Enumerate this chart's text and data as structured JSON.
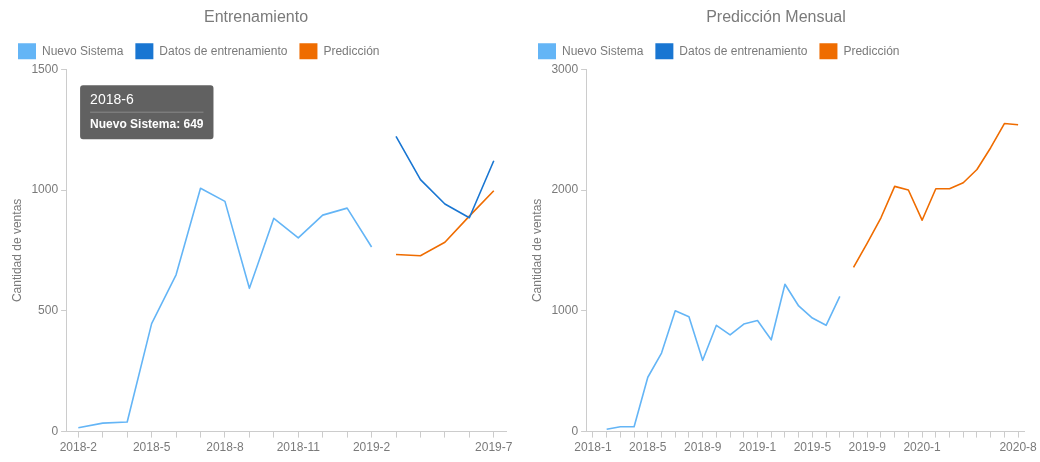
{
  "chart_data": [
    {
      "type": "line",
      "title": "Entrenamiento",
      "ylabel": "Cantidad de ventas",
      "categories": [
        "2018-2",
        null,
        null,
        "2018-5",
        null,
        null,
        "2018-8",
        null,
        null,
        "2018-11",
        null,
        null,
        "2019-2",
        null,
        null,
        null,
        null,
        "2019-7"
      ],
      "series": [
        {
          "name": "Nuevo Sistema",
          "color": "#64b5f6",
          "values": [
            16,
            35,
            40,
            447,
            649,
            1007,
            953,
            593,
            883,
            802,
            896,
            925,
            764,
            null,
            null,
            null,
            null,
            null
          ]
        },
        {
          "name": "Datos de entrenamiento",
          "color": "#1976d2",
          "values": [
            null,
            null,
            null,
            null,
            null,
            null,
            null,
            null,
            null,
            null,
            null,
            null,
            null,
            1222,
            1043,
            942,
            885,
            1121
          ]
        },
        {
          "name": "Predicción",
          "color": "#ef6c00",
          "values": [
            null,
            null,
            null,
            null,
            null,
            null,
            null,
            null,
            null,
            null,
            null,
            null,
            null,
            733,
            728,
            784,
            892,
            997
          ]
        }
      ],
      "ylim": [
        0,
        1500
      ],
      "yticks": [
        0,
        500,
        1000,
        1500
      ],
      "grid": false,
      "legend": "top left",
      "marker": "none",
      "annotations": [
        "2018-6",
        "Nuevo Sistema: 649"
      ]
    },
    {
      "type": "line",
      "title": "Predicción Mensual",
      "ylabel": "Cantidad de ventas",
      "categories": [
        "2018-1",
        null,
        null,
        null,
        "2018-5",
        null,
        null,
        null,
        "2018-9",
        null,
        null,
        null,
        "2019-1",
        null,
        null,
        null,
        "2019-5",
        null,
        null,
        null,
        "2019-9",
        null,
        null,
        null,
        "2020-1",
        null,
        null,
        null,
        null,
        null,
        null,
        "2020-8"
      ],
      "series": [
        {
          "name": "Nuevo Sistema",
          "color": "#64b5f6",
          "values": [
            null,
            20,
            40,
            40,
            450,
            650,
            1000,
            950,
            590,
            880,
            800,
            890,
            920,
            760,
            1220,
            1040,
            940,
            880,
            1120,
            null,
            null,
            null,
            null,
            null,
            null,
            null,
            null,
            null,
            null,
            null,
            null,
            null
          ]
        },
        {
          "name": "Datos de entrenamiento",
          "color": "#1976d2",
          "values": [
            null,
            null,
            null,
            null,
            null,
            null,
            null,
            null,
            null,
            null,
            null,
            null,
            null,
            null,
            null,
            null,
            null,
            null,
            null,
            null,
            null,
            null,
            null,
            null,
            null,
            null,
            null,
            null,
            null,
            null,
            null,
            null
          ]
        },
        {
          "name": "Predicción",
          "color": "#ef6c00",
          "values": [
            null,
            null,
            null,
            null,
            null,
            null,
            null,
            null,
            null,
            null,
            null,
            null,
            null,
            null,
            null,
            null,
            null,
            null,
            null,
            1360,
            1560,
            1770,
            2030,
            2000,
            1750,
            2010,
            2010,
            2060,
            2170,
            2350,
            2550,
            2540
          ]
        }
      ],
      "ylim": [
        0,
        3000
      ],
      "yticks": [
        0,
        1000,
        2000,
        3000
      ],
      "grid": false,
      "legend": "top left",
      "marker": "none"
    }
  ]
}
